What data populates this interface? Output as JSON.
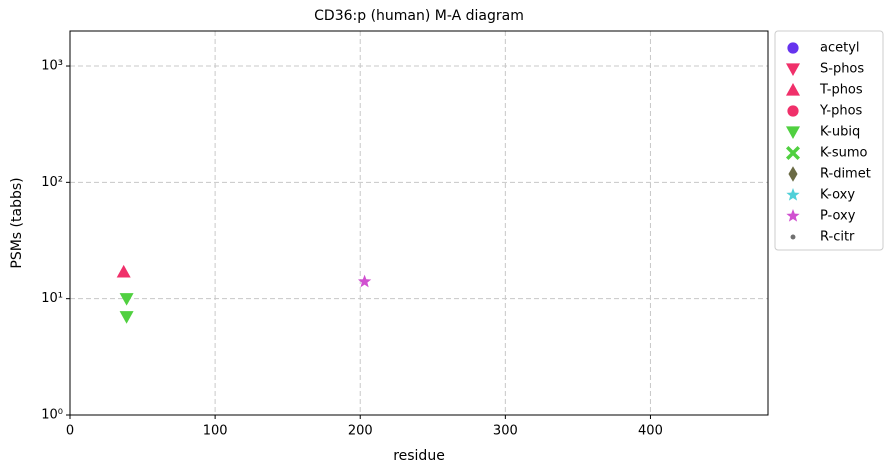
{
  "chart_data": {
    "type": "scatter",
    "title": "CD36:p (human) M-A diagram",
    "x_label": "residue",
    "y_label": "PSMs (tabbs)",
    "xlim": [
      0,
      481
    ],
    "xticks": [
      0,
      100,
      200,
      300,
      400
    ],
    "ylim": [
      1,
      2000
    ],
    "y_scale": "log",
    "yticks": [
      {
        "value": 1,
        "label": "10⁰"
      },
      {
        "value": 10,
        "label": "10¹"
      },
      {
        "value": 100,
        "label": "10²"
      },
      {
        "value": 1000,
        "label": "10³"
      }
    ],
    "grid": true,
    "legend": "outside upper right",
    "series": [
      {
        "name": "acetyl",
        "color": "#6633ee",
        "marker": "circle",
        "x": [],
        "values": []
      },
      {
        "name": "S-phos",
        "color": "#f0306a",
        "marker": "triangle-down",
        "x": [],
        "values": []
      },
      {
        "name": "T-phos",
        "color": "#f0306a",
        "marker": "triangle-up",
        "x": [
          37
        ],
        "values": [
          17
        ]
      },
      {
        "name": "Y-phos",
        "color": "#f0306a",
        "marker": "circle",
        "x": [],
        "values": []
      },
      {
        "name": "K-ubiq",
        "color": "#50d040",
        "marker": "triangle-down",
        "x": [
          39,
          39
        ],
        "values": [
          10,
          7
        ]
      },
      {
        "name": "K-sumo",
        "color": "#50d040",
        "marker": "x",
        "x": [],
        "values": []
      },
      {
        "name": "R-dimet",
        "color": "#6b6b45",
        "marker": "diamond",
        "x": [],
        "values": []
      },
      {
        "name": "K-oxy",
        "color": "#50d0d8",
        "marker": "star",
        "x": [],
        "values": []
      },
      {
        "name": "P-oxy",
        "color": "#d050d0",
        "marker": "star",
        "x": [
          203
        ],
        "values": [
          14
        ]
      },
      {
        "name": "R-citr",
        "color": "#707070",
        "marker": "dot",
        "x": [],
        "values": []
      }
    ]
  }
}
